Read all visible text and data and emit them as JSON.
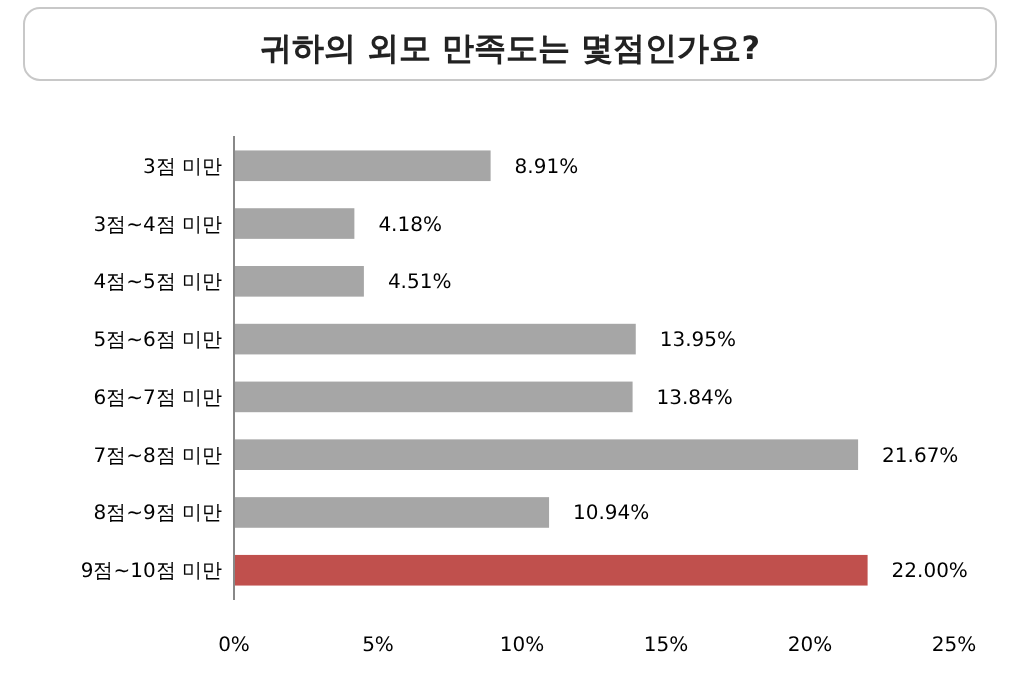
{
  "chart_data": {
    "type": "bar",
    "orientation": "horizontal",
    "title": "귀하의  외모 만족도는 몇점인가요?",
    "categories": [
      "3점 미만",
      "3점~4점 미만",
      "4점~5점 미만",
      "5점~6점 미만",
      "6점~7점 미만",
      "7점~8점 미만",
      "8점~9점 미만",
      "9점~10점 미만"
    ],
    "values": [
      8.91,
      4.18,
      4.51,
      13.95,
      13.84,
      21.67,
      10.94,
      22.0
    ],
    "colors": [
      "#a6a6a6",
      "#a6a6a6",
      "#a6a6a6",
      "#a6a6a6",
      "#a6a6a6",
      "#a6a6a6",
      "#a6a6a6",
      "#c0504d"
    ],
    "value_labels": [
      "8.91%",
      "4.18%",
      "4.51%",
      "13.95%",
      "13.84%",
      "21.67%",
      "10.94%",
      "22.00%"
    ],
    "xlim": [
      0,
      25
    ],
    "xticks": [
      {
        "value": 0,
        "label": "0%"
      },
      {
        "value": 5,
        "label": "5%"
      },
      {
        "value": 10,
        "label": "10%"
      },
      {
        "value": 15,
        "label": "15%"
      },
      {
        "value": 20,
        "label": "20%"
      },
      {
        "value": 25,
        "label": "25%"
      }
    ],
    "grid": false
  }
}
